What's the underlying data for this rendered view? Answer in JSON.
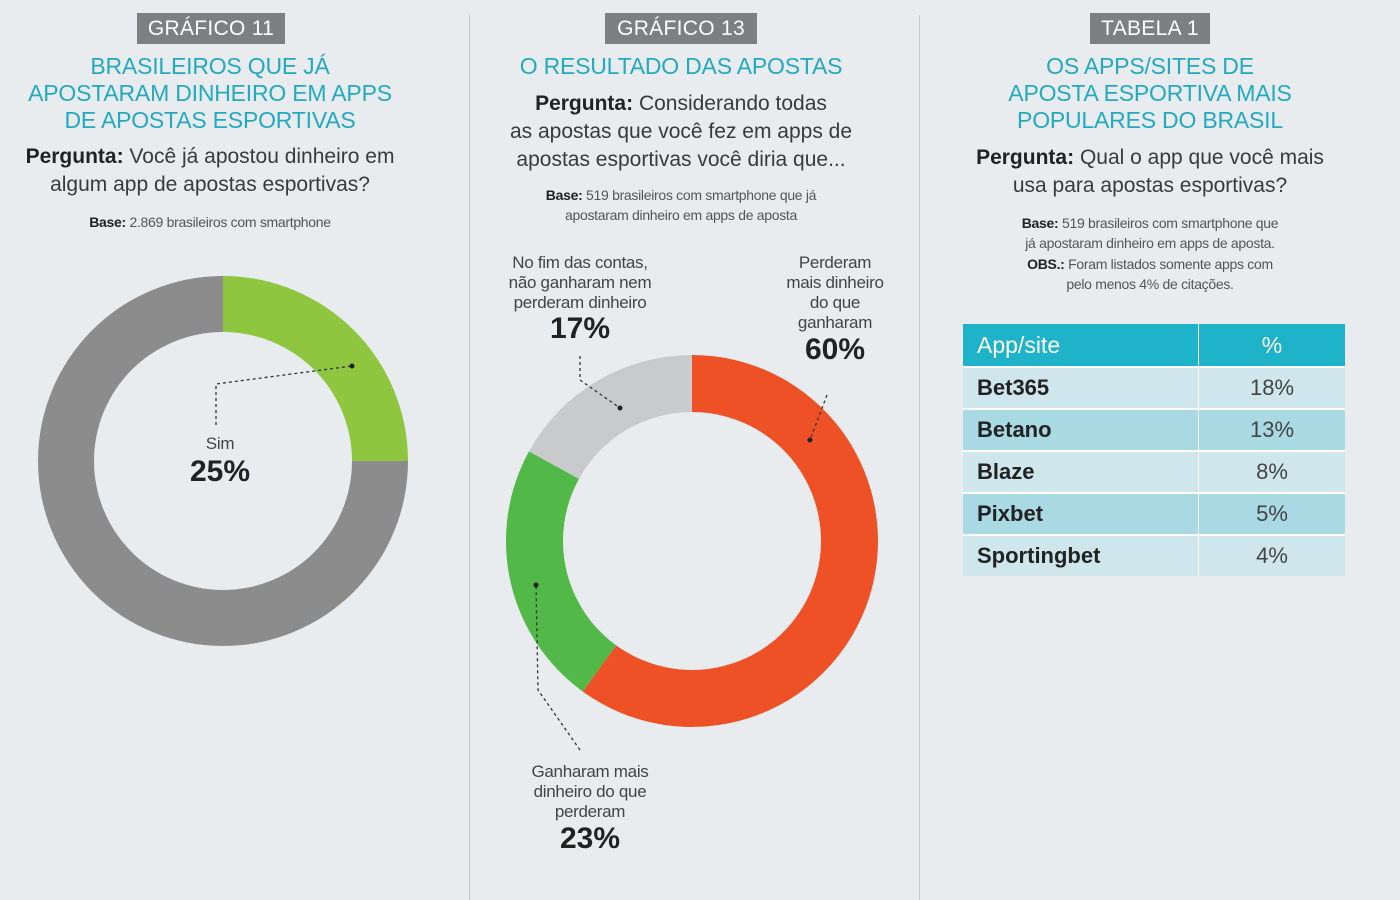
{
  "chart_data": [
    {
      "type": "pie",
      "tag": "GRÁFICO 11",
      "title": "BRASILEIROS QUE JÁ\nAPOSTARAM DINHEIRO EM APPS\nDE APOSTAS ESPORTIVAS",
      "question_label": "Pergunta:",
      "question": "Você já apostou dinheiro em\nalgum app de apostas esportivas?",
      "base_label": "Base:",
      "base": "2.869 brasileiros com smartphone",
      "slices": [
        {
          "label": "Sim",
          "value": 25,
          "display": "25%",
          "color": "#8fc63f"
        },
        {
          "label": "",
          "value": 75,
          "display": "",
          "color": "#8c8c8c"
        }
      ]
    },
    {
      "type": "pie",
      "tag": "GRÁFICO 13",
      "title": "O RESULTADO DAS APOSTAS",
      "question_label": "Pergunta:",
      "question": "Considerando todas\nas apostas que você fez em apps de\napostas esportivas você diria que...",
      "base_label": "Base:",
      "base": "519 brasileiros com smartphone que já\napostaram dinheiro em apps de aposta",
      "slices": [
        {
          "label": "Perderam\nmais dinheiro\ndo que\nganharam",
          "value": 60,
          "display": "60%",
          "color": "#ef5127"
        },
        {
          "label": "Ganharam mais\ndinheiro do que\nperderam",
          "value": 23,
          "display": "23%",
          "color": "#52b848"
        },
        {
          "label": "No fim das contas,\nnão ganharam nem\nperderam dinheiro",
          "value": 17,
          "display": "17%",
          "color": "#c9cacb"
        }
      ]
    },
    {
      "type": "table",
      "tag": "TABELA 1",
      "title": "OS APPS/SITES DE\nAPOSTA ESPORTIVA MAIS\nPOPULARES DO BRASIL",
      "question_label": "Pergunta:",
      "question": "Qual o app que você mais\nusa para apostas esportivas?",
      "base_label": "Base:",
      "base": "519 brasileiros com smartphone que\njá apostaram dinheiro em apps de aposta.",
      "obs_label": "OBS.:",
      "obs": "Foram listados somente apps com\npelo menos 4% de citações.",
      "columns": [
        "App/site",
        "%"
      ],
      "rows": [
        {
          "app": "Bet365",
          "value": 18,
          "display": "18%"
        },
        {
          "app": "Betano",
          "value": 13,
          "display": "13%"
        },
        {
          "app": "Blaze",
          "value": 8,
          "display": "8%"
        },
        {
          "app": "Pixbet",
          "value": 5,
          "display": "5%"
        },
        {
          "app": "Sportingbet",
          "value": 4,
          "display": "4%"
        }
      ]
    }
  ]
}
